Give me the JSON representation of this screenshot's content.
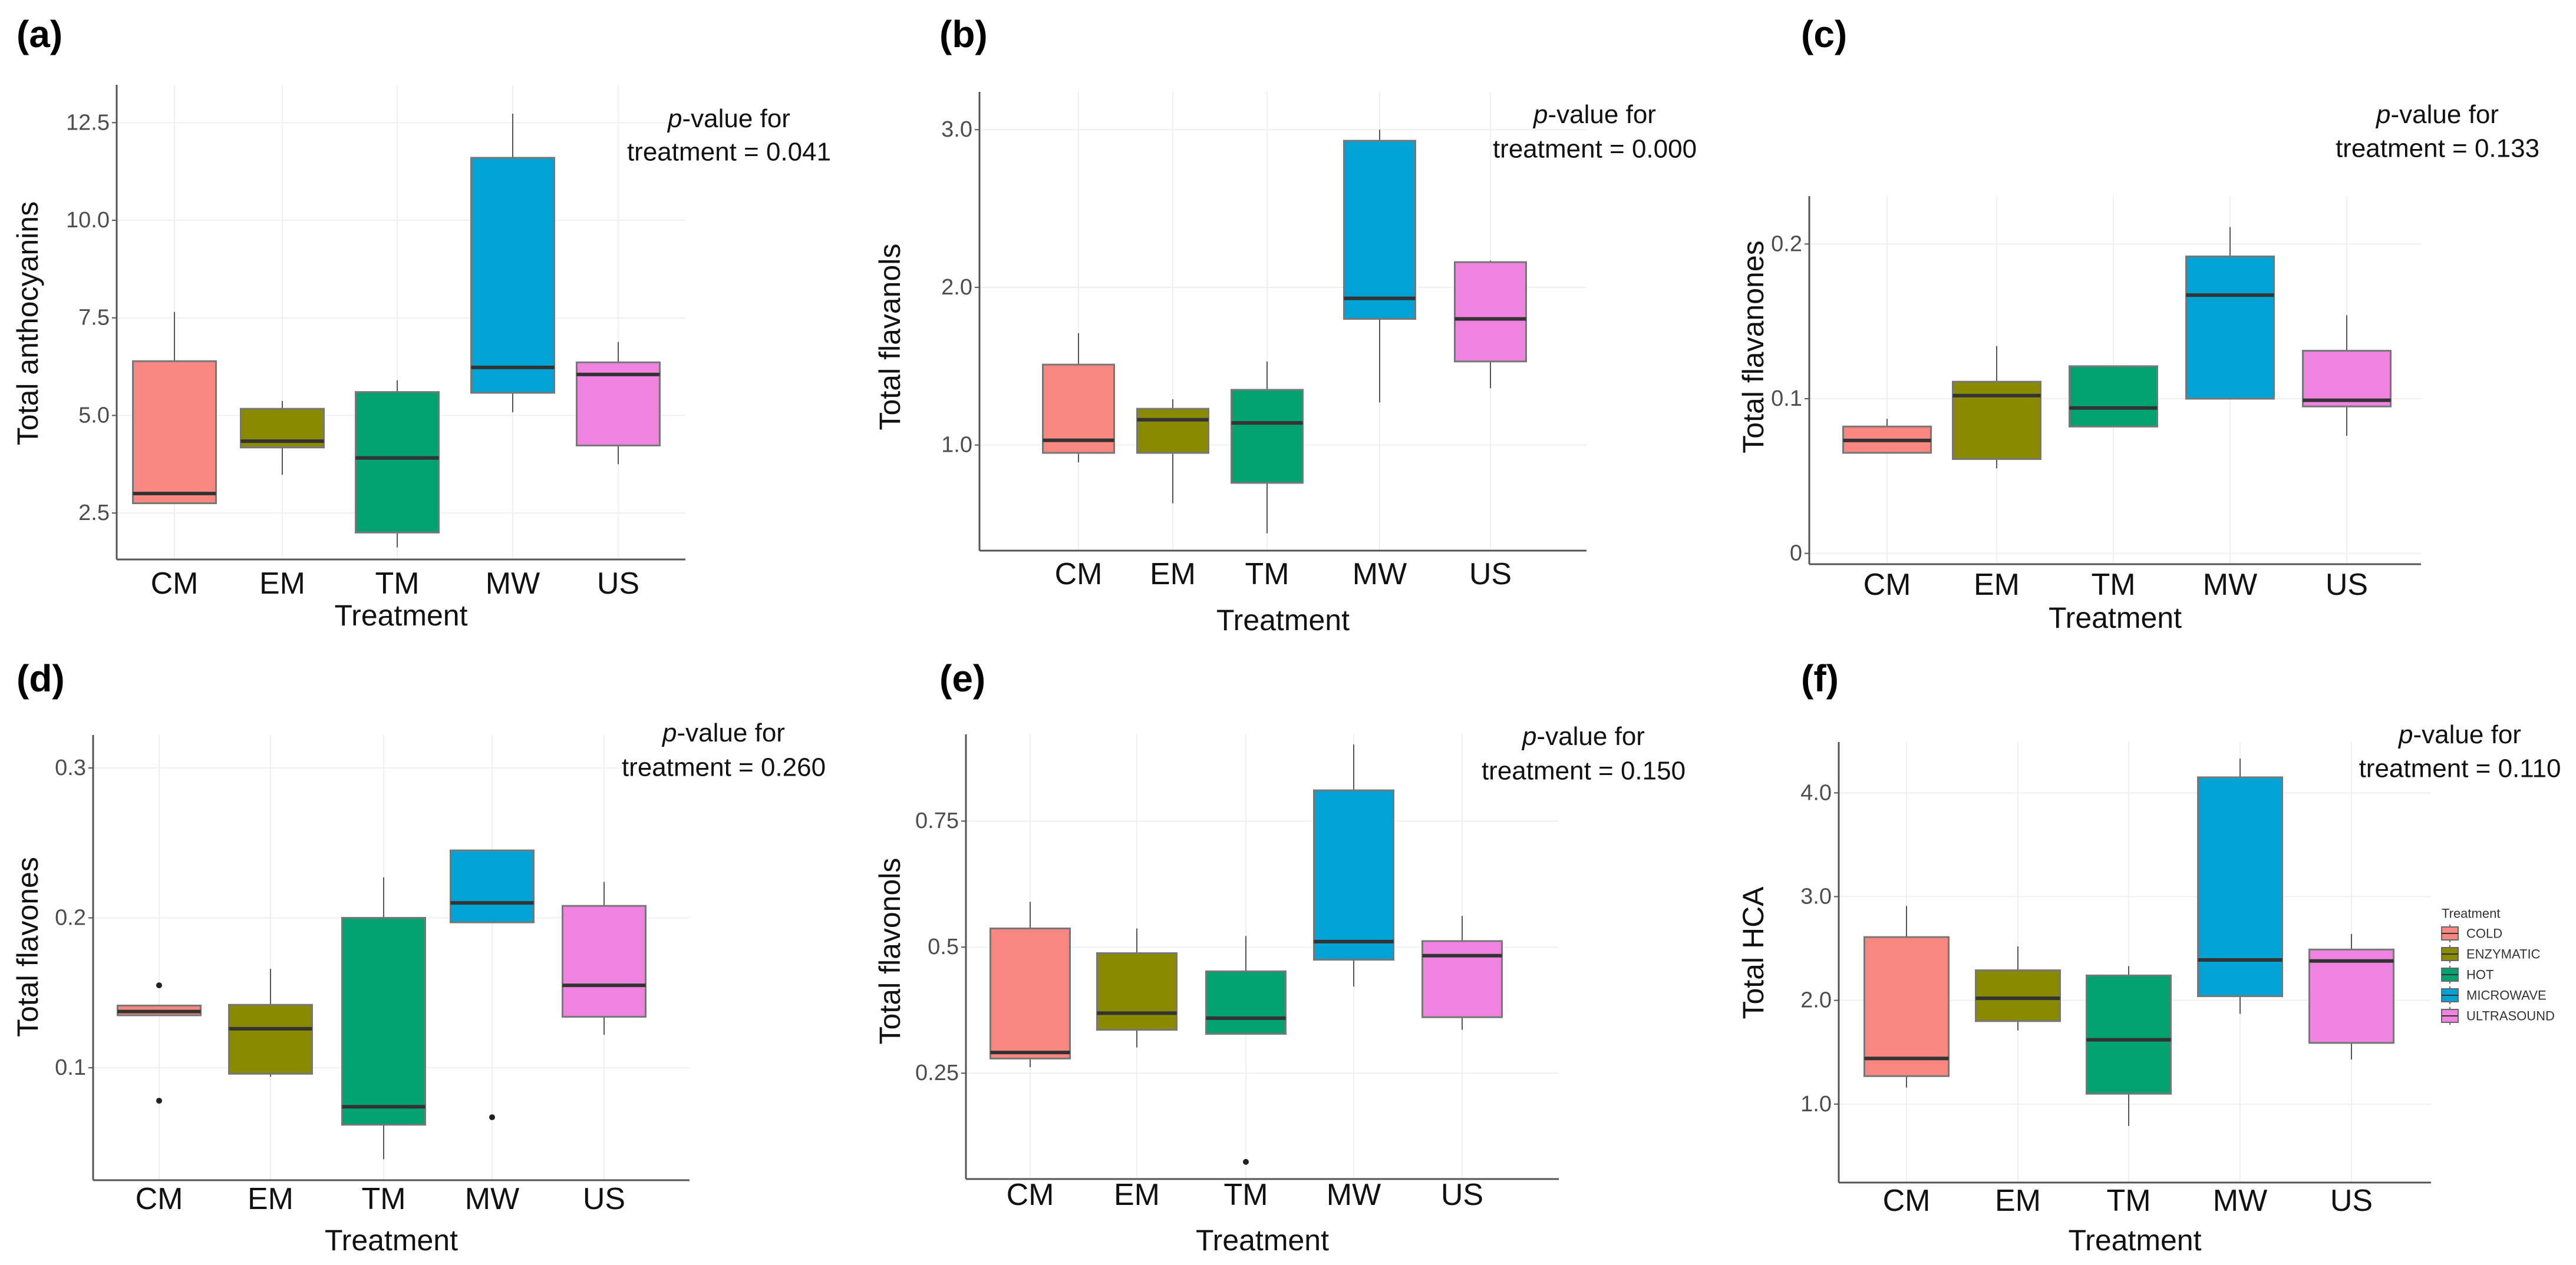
{
  "colors": {
    "CM": "#f8877f",
    "EM": "#8a8a00",
    "TM": "#00a36f",
    "MW": "#00a3d4",
    "US": "#ee83e0",
    "median": "#333333",
    "outline": "#777777",
    "axis": "#555555",
    "grid": "#f0f0f0"
  },
  "chart_data": [
    {
      "panel_label": "(a)",
      "type": "box",
      "ylabel": "Total anthocyanins",
      "xlabel": "Treatment",
      "categories": [
        "CM",
        "EM",
        "TM",
        "MW",
        "US"
      ],
      "ylim": [
        1.31,
        13.47
      ],
      "yticks": [
        {
          "v": 2.5,
          "label": "2.5"
        },
        {
          "v": 5.0,
          "label": "5.0"
        },
        {
          "v": 7.5,
          "label": "7.5"
        },
        {
          "v": 10.0,
          "label": "10.0"
        },
        {
          "v": 12.5,
          "label": "12.5"
        }
      ],
      "p_italic": "p",
      "p_line1": "-value for",
      "p_line2": "treatment = 0.041",
      "boxes": [
        {
          "min": 2.75,
          "q1": 2.75,
          "median": 3.0,
          "q3": 6.39,
          "max": 7.65,
          "outliers": []
        },
        {
          "min": 3.48,
          "q1": 4.18,
          "median": 4.34,
          "q3": 5.17,
          "max": 5.37,
          "outliers": []
        },
        {
          "min": 1.62,
          "q1": 2.0,
          "median": 3.91,
          "q3": 5.6,
          "max": 5.9,
          "outliers": []
        },
        {
          "min": 5.08,
          "q1": 5.58,
          "median": 6.23,
          "q3": 11.6,
          "max": 12.73,
          "outliers": []
        },
        {
          "min": 3.75,
          "q1": 4.23,
          "median": 6.05,
          "q3": 6.36,
          "max": 6.88,
          "outliers": []
        }
      ]
    },
    {
      "panel_label": "(b)",
      "type": "box",
      "ylabel": "Total flavanols",
      "xlabel": "Treatment",
      "categories": [
        "CM",
        "EM",
        "TM",
        "MW",
        "US"
      ],
      "ylim": [
        0.33,
        3.24
      ],
      "yticks": [
        {
          "v": 1.0,
          "label": "1.0"
        },
        {
          "v": 2.0,
          "label": "2.0"
        },
        {
          "v": 3.0,
          "label": "3.0"
        }
      ],
      "p_italic": "p",
      "p_line1": "-value for",
      "p_line2": "treatment = 0.000",
      "boxes": [
        {
          "min": 0.89,
          "q1": 0.95,
          "median": 1.03,
          "q3": 1.51,
          "max": 1.71,
          "outliers": []
        },
        {
          "min": 0.63,
          "q1": 0.95,
          "median": 1.16,
          "q3": 1.23,
          "max": 1.29,
          "outliers": []
        },
        {
          "min": 0.44,
          "q1": 0.76,
          "median": 1.14,
          "q3": 1.35,
          "max": 1.53,
          "outliers": []
        },
        {
          "min": 1.27,
          "q1": 1.8,
          "median": 1.93,
          "q3": 2.93,
          "max": 3.0,
          "outliers": []
        },
        {
          "min": 1.36,
          "q1": 1.53,
          "median": 1.8,
          "q3": 2.16,
          "max": 2.17,
          "outliers": []
        }
      ]
    },
    {
      "panel_label": "(c)",
      "type": "box",
      "ylabel": "Total flavanones",
      "xlabel": "Treatment",
      "categories": [
        "CM",
        "EM",
        "TM",
        "MW",
        "US"
      ],
      "ylim": [
        -0.007,
        0.231
      ],
      "yticks": [
        {
          "v": 0,
          "label": "0"
        },
        {
          "v": 0.1,
          "label": "0.1"
        },
        {
          "v": 0.2,
          "label": "0.2"
        }
      ],
      "p_italic": "p",
      "p_line1": "-value for",
      "p_line2": "treatment = 0.133",
      "boxes": [
        {
          "min": 0.065,
          "q1": 0.065,
          "median": 0.073,
          "q3": 0.082,
          "max": 0.087,
          "outliers": []
        },
        {
          "min": 0.055,
          "q1": 0.061,
          "median": 0.102,
          "q3": 0.111,
          "max": 0.134,
          "outliers": []
        },
        {
          "min": 0.082,
          "q1": 0.082,
          "median": 0.094,
          "q3": 0.121,
          "max": 0.121,
          "outliers": []
        },
        {
          "min": 0.1,
          "q1": 0.1,
          "median": 0.167,
          "q3": 0.192,
          "max": 0.211,
          "outliers": []
        },
        {
          "min": 0.076,
          "q1": 0.095,
          "median": 0.099,
          "q3": 0.131,
          "max": 0.154,
          "outliers": []
        }
      ]
    },
    {
      "panel_label": "(d)",
      "type": "box",
      "ylabel": "Total flavones",
      "xlabel": "Treatment",
      "categories": [
        "CM",
        "EM",
        "TM",
        "MW",
        "US"
      ],
      "ylim": [
        0.025,
        0.322
      ],
      "yticks": [
        {
          "v": 0.1,
          "label": "0.1"
        },
        {
          "v": 0.2,
          "label": "0.2"
        },
        {
          "v": 0.3,
          "label": "0.3"
        }
      ],
      "p_italic": "p",
      "p_line1": "-value for",
      "p_line2": "treatment = 0.260",
      "boxes": [
        {
          "min": 0.135,
          "q1": 0.135,
          "median": 0.1375,
          "q3": 0.1415,
          "max": 0.1415,
          "outliers": [
            0.155,
            0.078
          ]
        },
        {
          "min": 0.094,
          "q1": 0.096,
          "median": 0.126,
          "q3": 0.142,
          "max": 0.166,
          "outliers": []
        },
        {
          "min": 0.039,
          "q1": 0.062,
          "median": 0.074,
          "q3": 0.2,
          "max": 0.227,
          "outliers": []
        },
        {
          "min": 0.197,
          "q1": 0.197,
          "median": 0.21,
          "q3": 0.245,
          "max": 0.245,
          "outliers": [
            0.067
          ]
        },
        {
          "min": 0.122,
          "q1": 0.134,
          "median": 0.155,
          "q3": 0.208,
          "max": 0.224,
          "outliers": []
        }
      ]
    },
    {
      "panel_label": "(e)",
      "type": "box",
      "ylabel": "Total flavonols",
      "xlabel": "Treatment",
      "categories": [
        "CM",
        "EM",
        "TM",
        "MW",
        "US"
      ],
      "ylim": [
        0.04,
        0.922
      ],
      "yticks": [
        {
          "v": 0.25,
          "label": "0.25"
        },
        {
          "v": 0.5,
          "label": "0.5"
        },
        {
          "v": 0.75,
          "label": "0.75"
        }
      ],
      "p_italic": "p",
      "p_line1": "-value for",
      "p_line2": "treatment = 0.150",
      "boxes": [
        {
          "min": 0.262,
          "q1": 0.279,
          "median": 0.291,
          "q3": 0.537,
          "max": 0.59,
          "outliers": []
        },
        {
          "min": 0.301,
          "q1": 0.336,
          "median": 0.369,
          "q3": 0.488,
          "max": 0.537,
          "outliers": []
        },
        {
          "min": 0.328,
          "q1": 0.328,
          "median": 0.359,
          "q3": 0.452,
          "max": 0.522,
          "outliers": [
            0.074
          ]
        },
        {
          "min": 0.422,
          "q1": 0.475,
          "median": 0.511,
          "q3": 0.811,
          "max": 0.902,
          "outliers": []
        },
        {
          "min": 0.336,
          "q1": 0.361,
          "median": 0.483,
          "q3": 0.512,
          "max": 0.562,
          "outliers": []
        }
      ]
    },
    {
      "panel_label": "(f)",
      "type": "box",
      "ylabel": "Total HCA",
      "xlabel": "Treatment",
      "categories": [
        "CM",
        "EM",
        "TM",
        "MW",
        "US"
      ],
      "ylim": [
        0.244,
        4.49
      ],
      "yticks": [
        {
          "v": 1.0,
          "label": "1.0"
        },
        {
          "v": 2.0,
          "label": "2.0"
        },
        {
          "v": 3.0,
          "label": "3.0"
        },
        {
          "v": 4.0,
          "label": "4.0"
        }
      ],
      "p_italic": "p",
      "p_line1": "-value for",
      "p_line2": "treatment = 0.110",
      "boxes": [
        {
          "min": 1.16,
          "q1": 1.27,
          "median": 1.44,
          "q3": 2.61,
          "max": 2.91,
          "outliers": []
        },
        {
          "min": 1.71,
          "q1": 1.8,
          "median": 2.02,
          "q3": 2.29,
          "max": 2.52,
          "outliers": []
        },
        {
          "min": 0.79,
          "q1": 1.1,
          "median": 1.62,
          "q3": 2.24,
          "max": 2.33,
          "outliers": []
        },
        {
          "min": 1.87,
          "q1": 2.04,
          "median": 2.39,
          "q3": 4.15,
          "max": 4.33,
          "outliers": []
        },
        {
          "min": 1.43,
          "q1": 1.59,
          "median": 2.38,
          "q3": 2.49,
          "max": 2.64,
          "outliers": []
        }
      ],
      "legend": {
        "title": "Treatment",
        "placement": "right",
        "entries": [
          "COLD",
          "ENZYMATIC",
          "HOT",
          "MICROWAVE",
          "ULTRASOUND"
        ]
      }
    }
  ]
}
